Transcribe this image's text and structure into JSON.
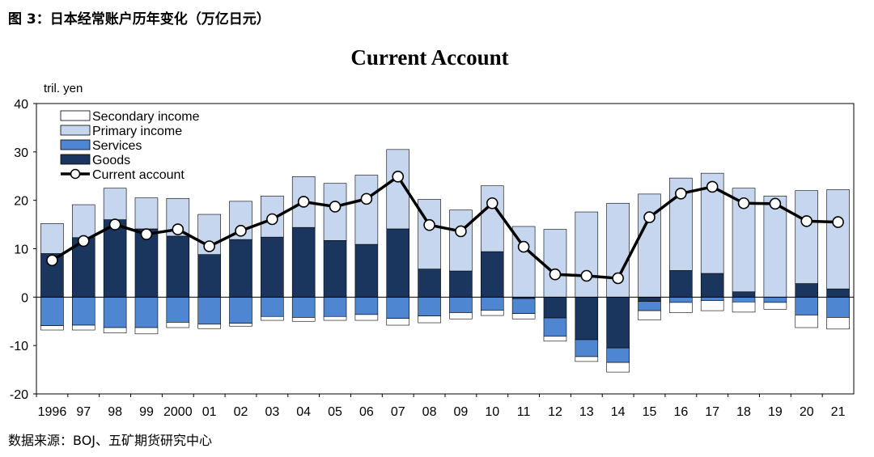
{
  "caption": "图 3：日本经常账户历年变化（万亿日元）",
  "source": "数据来源：BOJ、五矿期货研究中心",
  "chart_data": {
    "type": "bar",
    "subtype": "stacked-bar-with-line",
    "title": "Current Account",
    "ylabel": "tril. yen",
    "xlabel": "",
    "ylim": [
      -20,
      40
    ],
    "yticks": [
      -20,
      -10,
      0,
      10,
      20,
      30,
      40
    ],
    "grid": false,
    "legend_position": "top-left",
    "categories": [
      "1996",
      "97",
      "98",
      "99",
      "2000",
      "01",
      "02",
      "03",
      "04",
      "05",
      "06",
      "07",
      "08",
      "09",
      "10",
      "11",
      "12",
      "13",
      "14",
      "15",
      "16",
      "17",
      "18",
      "19",
      "20",
      "21"
    ],
    "series": [
      {
        "name": "Secondary income",
        "kind": "bar",
        "color": "#ffffff",
        "values": [
          -0.9,
          -1.0,
          -1.1,
          -1.3,
          -1.1,
          -0.9,
          -0.6,
          -0.8,
          -0.8,
          -0.8,
          -1.2,
          -1.4,
          -1.4,
          -1.3,
          -1.1,
          -1.1,
          -1.0,
          -1.0,
          -2.0,
          -1.9,
          -2.1,
          -2.1,
          -2.1,
          -1.4,
          -2.6,
          -2.4
        ]
      },
      {
        "name": "Primary income",
        "kind": "bar",
        "color": "#c5d6ee",
        "values": [
          6.2,
          6.8,
          6.5,
          6.4,
          7.8,
          8.3,
          7.9,
          8.5,
          10.5,
          11.8,
          14.3,
          16.4,
          14.4,
          12.6,
          13.6,
          14.6,
          14.0,
          17.6,
          19.4,
          21.3,
          19.1,
          20.7,
          21.4,
          20.9,
          19.2,
          20.5
        ]
      },
      {
        "name": "Services",
        "kind": "bar",
        "color": "#4f86d1",
        "values": [
          -5.9,
          -5.8,
          -6.3,
          -6.3,
          -5.2,
          -5.6,
          -5.4,
          -4.0,
          -4.2,
          -4.0,
          -3.6,
          -4.4,
          -3.9,
          -3.2,
          -2.7,
          -3.1,
          -3.8,
          -3.5,
          -3.0,
          -1.9,
          -1.1,
          -0.7,
          -1.0,
          -1.1,
          -3.7,
          -4.2
        ]
      },
      {
        "name": "Goods",
        "kind": "bar",
        "color": "#1b365e",
        "values": [
          9.0,
          12.3,
          16.0,
          14.1,
          12.6,
          8.8,
          11.9,
          12.4,
          14.4,
          11.7,
          10.9,
          14.1,
          5.8,
          5.4,
          9.4,
          -0.3,
          -4.3,
          -8.8,
          -10.5,
          -0.9,
          5.5,
          4.9,
          1.1,
          0.0,
          2.8,
          1.7
        ]
      },
      {
        "name": "Current account",
        "kind": "line",
        "color": "#000000",
        "values": [
          7.6,
          11.6,
          15.0,
          13.0,
          14.0,
          10.5,
          13.7,
          16.1,
          19.7,
          18.7,
          20.3,
          24.9,
          14.9,
          13.6,
          19.4,
          10.4,
          4.7,
          4.4,
          3.9,
          16.5,
          21.4,
          22.8,
          19.4,
          19.3,
          15.7,
          15.5
        ]
      }
    ]
  }
}
